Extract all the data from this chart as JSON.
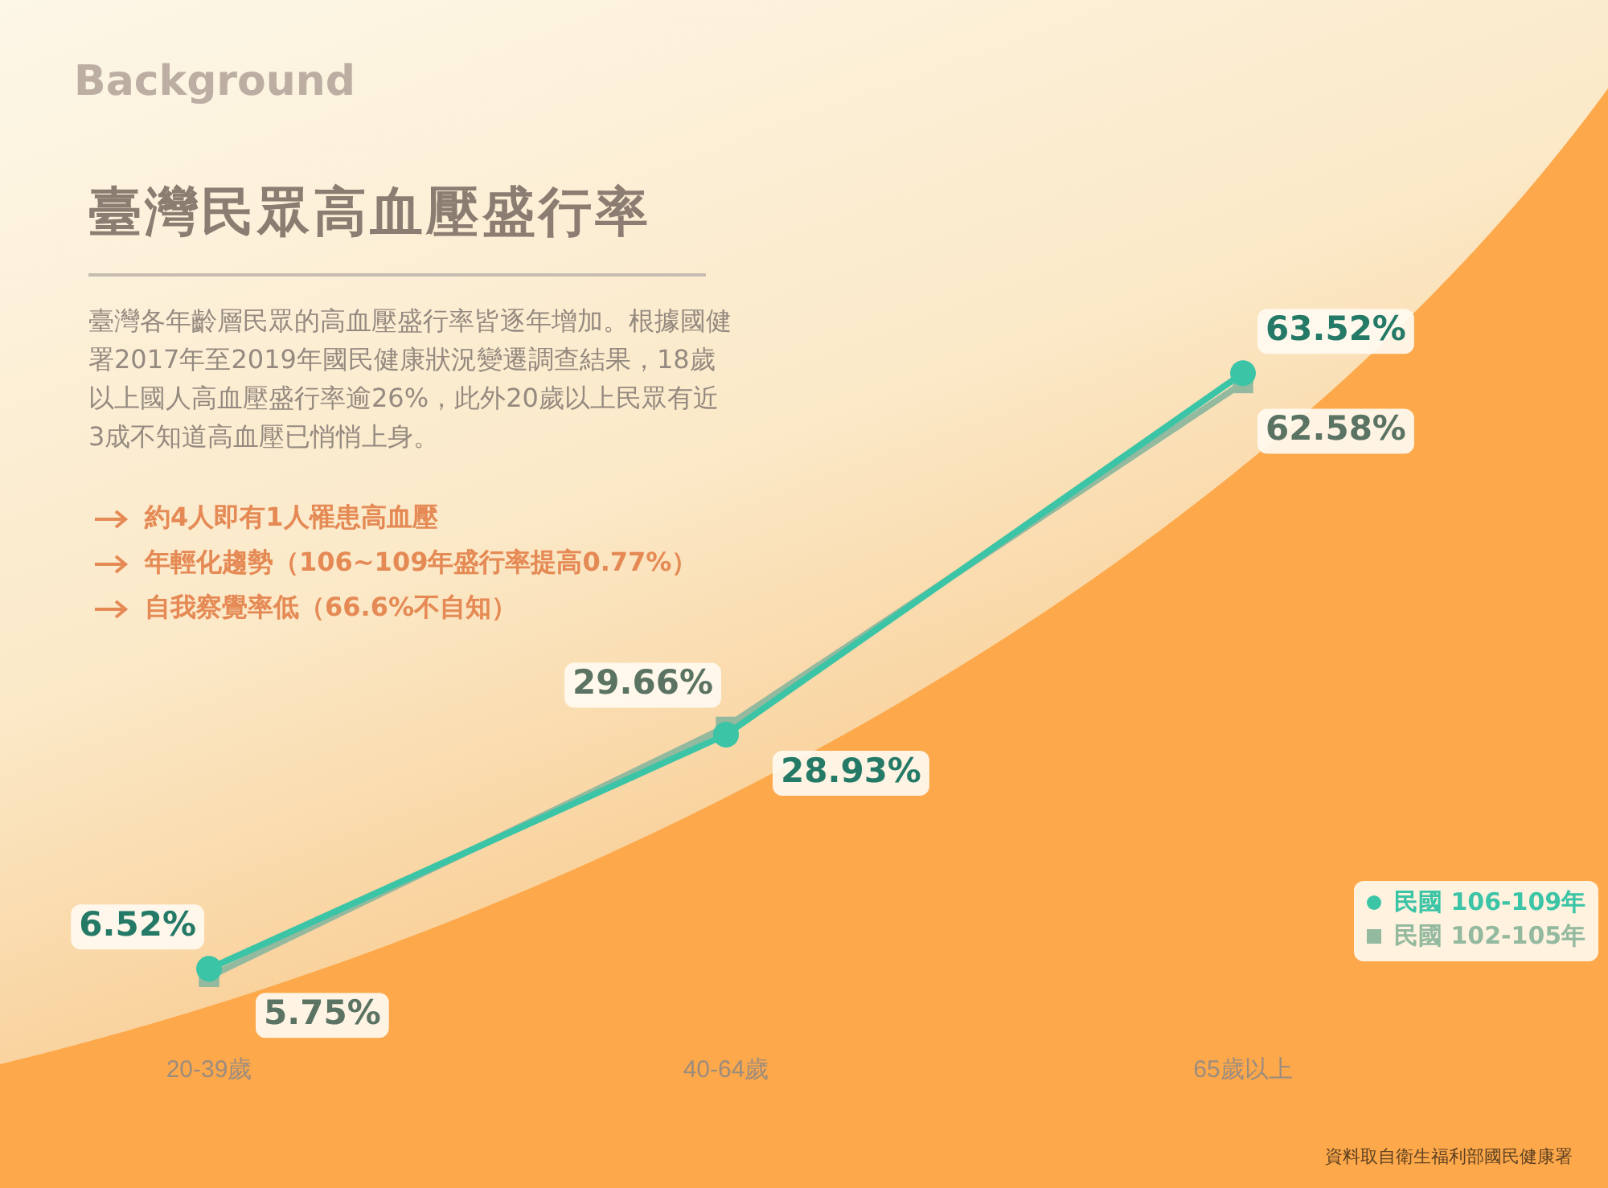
{
  "chart_data": {
    "type": "line",
    "title": "臺灣民眾高血壓盛行率",
    "annotations": [
      "Background",
      "臺灣各年齡層民眾的高血壓盛行率皆逐年增加。根據國健署2017年至2019年國民健康狀況變遷調查結果，18歲以上國人高血壓盛行率逾26%，此外20歲以上民眾有近3成不知道高血壓已悄悄上身。",
      "約4人即有1人罹患高血壓",
      "年輕化趨勢（106~109年盛行率提高0.77%）",
      "自我察覺率低（66.6%不自知）",
      "資料取自衛生福利部國民健康署"
    ],
    "categories": [
      "20-39歲",
      "40-64歲",
      "65歲以上"
    ],
    "series": [
      {
        "name": "民國 106-109年",
        "color": "#3cc4a6",
        "values": [
          6.52,
          28.93,
          63.52
        ],
        "marker": "circle",
        "value_labels": [
          "6.52%",
          "28.93%",
          "63.52%"
        ]
      },
      {
        "name": "民國 102-105年",
        "color": "#93b99f",
        "values": [
          5.75,
          29.66,
          62.58
        ],
        "marker": "square",
        "value_labels": [
          "5.75%",
          "29.66%",
          "62.58%"
        ]
      }
    ],
    "tick_labels": "x",
    "grid": false,
    "legend": "bottom right",
    "line_style": "solid"
  }
}
